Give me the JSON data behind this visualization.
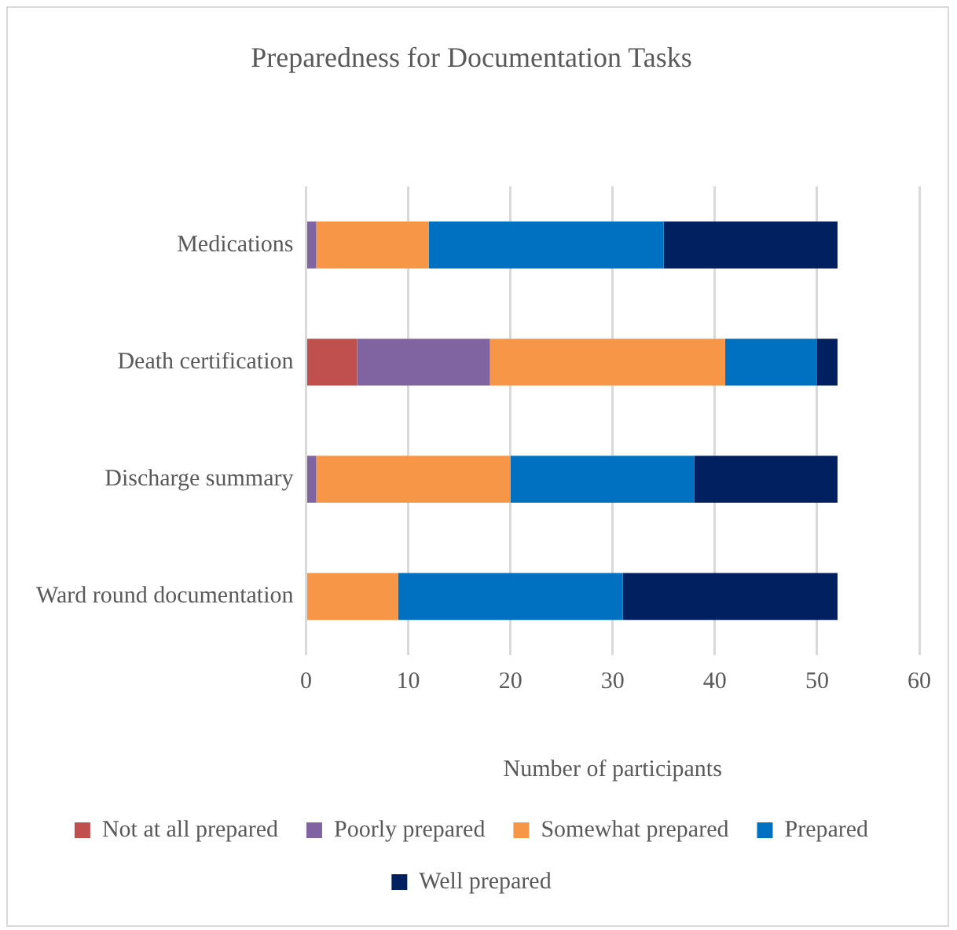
{
  "chart_data": {
    "type": "bar",
    "orientation": "horizontal",
    "stacked": true,
    "title": "Preparedness for Documentation Tasks",
    "xlabel": "Number of participants",
    "categories": [
      "Medications",
      "Death certification",
      "Discharge summary",
      "Ward round documentation"
    ],
    "series": [
      {
        "name": "Not at all prepared",
        "color": "#c0504d",
        "values": [
          0,
          5,
          0,
          0
        ]
      },
      {
        "name": "Poorly prepared",
        "color": "#8064a2",
        "values": [
          1,
          13,
          1,
          0
        ]
      },
      {
        "name": "Somewhat prepared",
        "color": "#f79646",
        "values": [
          11,
          23,
          19,
          9
        ]
      },
      {
        "name": "Prepared",
        "color": "#0070c0",
        "values": [
          23,
          9,
          18,
          22
        ]
      },
      {
        "name": "Well prepared",
        "color": "#002060",
        "values": [
          17,
          2,
          14,
          21
        ]
      }
    ],
    "xlim": [
      0,
      60
    ],
    "xticks": [
      0,
      10,
      20,
      30,
      40,
      50,
      60
    ],
    "grid": "x",
    "legend": "bottom"
  }
}
